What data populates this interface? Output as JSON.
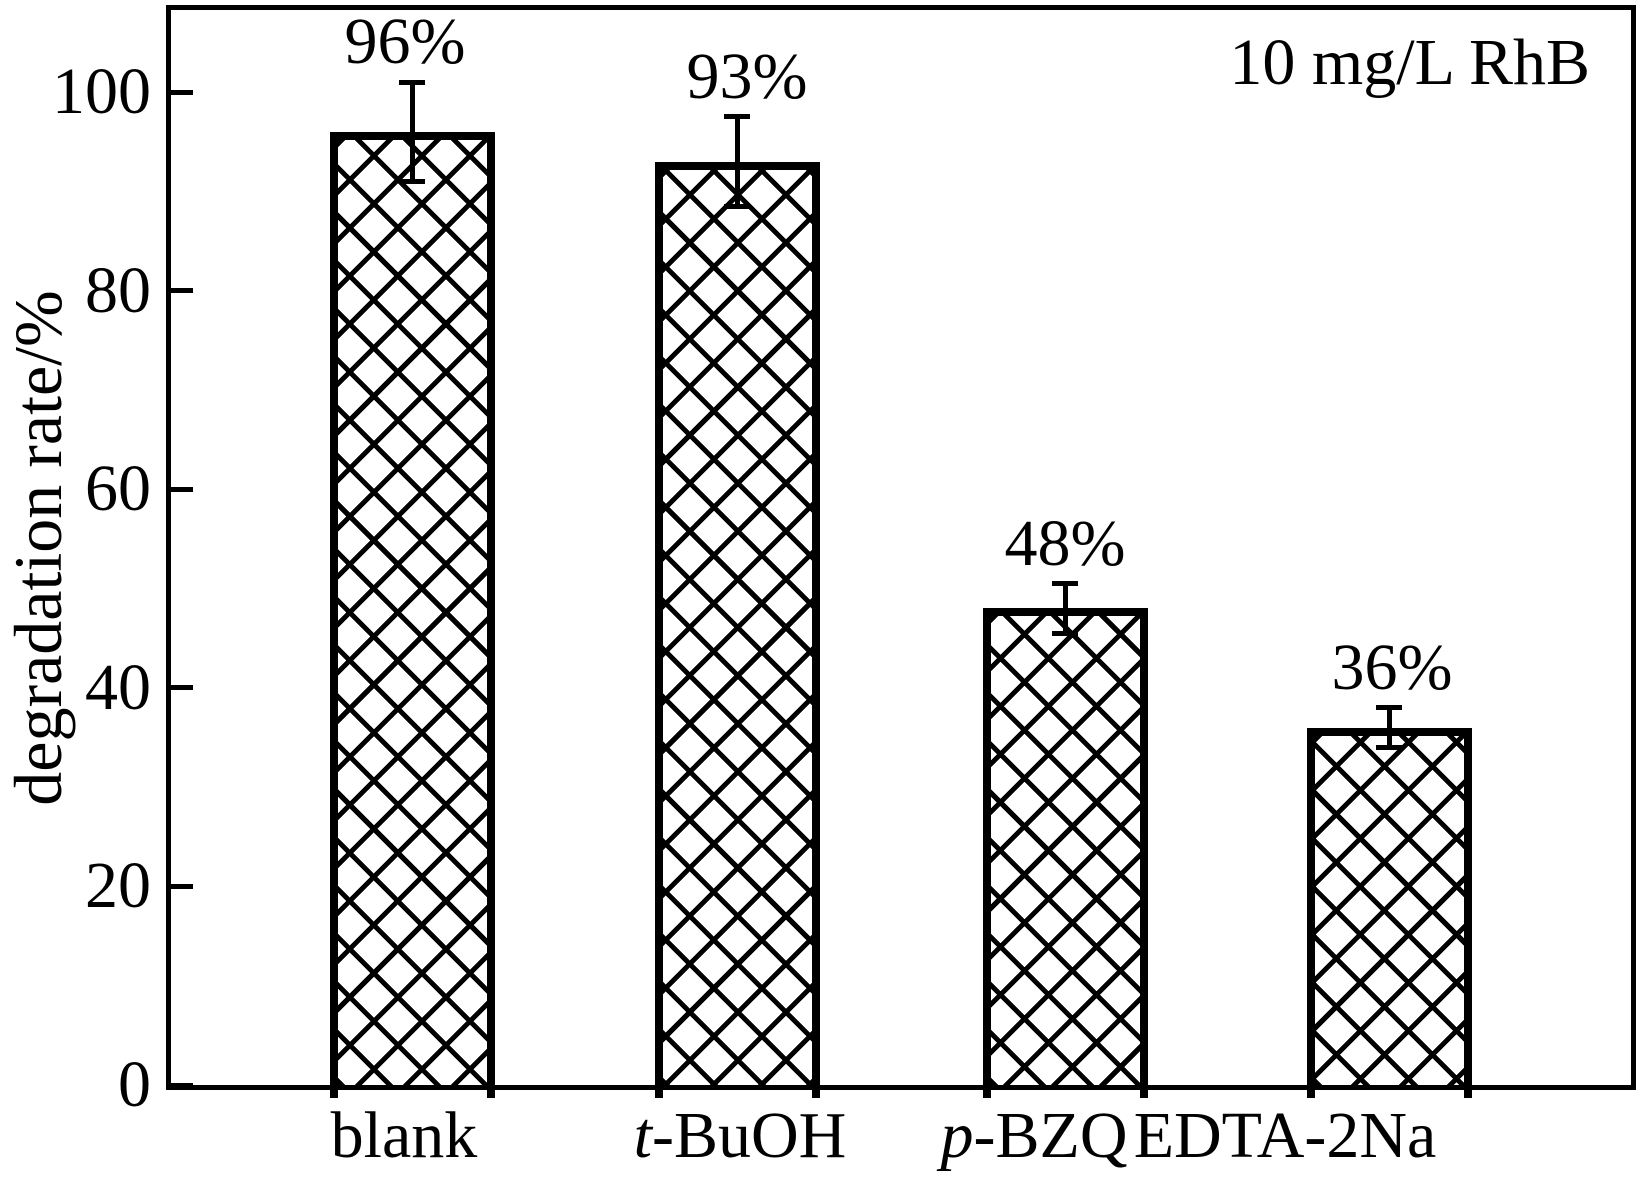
{
  "page": {
    "background_color": "#ffffff",
    "text_color": "#000000"
  },
  "chart_data": {
    "type": "bar",
    "title": "",
    "annotation": "10 mg/L RhB",
    "ylabel": "degradation rate/%",
    "xlabel": "",
    "categories": [
      "blank",
      "t-BuOH",
      "p-BZQ",
      "EDTA-2Na"
    ],
    "category_italic_prefix": [
      "",
      "t",
      "p",
      ""
    ],
    "category_rest": [
      "blank",
      "-BuOH",
      "-BZQ",
      "EDTA-2Na"
    ],
    "values": [
      96,
      93,
      48,
      36
    ],
    "value_labels": [
      "96%",
      "93%",
      "48%",
      "36%"
    ],
    "error_bars_plus_minus": [
      5,
      4.5,
      2.5,
      2
    ],
    "yticks": [
      0,
      20,
      40,
      60,
      80,
      100
    ],
    "ylim": [
      0,
      108.5
    ],
    "grid": false,
    "legend": "none",
    "bar_fill_pattern": "diagonal-crosshatch",
    "bar_outline_color": "#000000",
    "error_bar_color": "#000000",
    "background_color": "#ffffff"
  }
}
